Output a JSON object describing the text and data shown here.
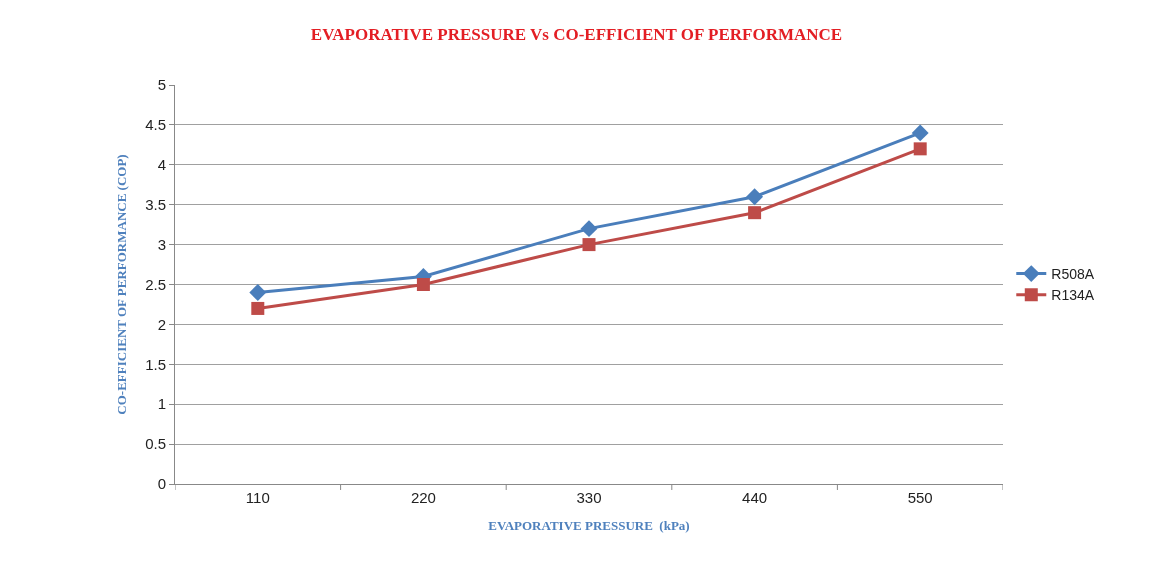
{
  "chart_data": {
    "type": "line",
    "title": "EVAPORATIVE PRESSURE Vs CO-EFFICIENT OF PERFORMANCE",
    "xlabel": "EVAPORATIVE PRESSURE  (kPa)",
    "ylabel": "CO-EFFICIENT OF PERFORMANCE (COP)",
    "categories": [
      "110",
      "220",
      "330",
      "440",
      "550"
    ],
    "series": [
      {
        "name": "R508A",
        "color": "#4a7ebb",
        "marker": "diamond",
        "values": [
          2.4,
          2.6,
          3.2,
          3.6,
          4.4
        ]
      },
      {
        "name": "R134A",
        "color": "#be4b48",
        "marker": "square",
        "values": [
          2.2,
          2.5,
          3.0,
          3.4,
          4.2
        ]
      }
    ],
    "ylim": [
      0,
      5
    ],
    "yticks": [
      0,
      0.5,
      1,
      1.5,
      2,
      2.5,
      3,
      3.5,
      4,
      4.5,
      5
    ],
    "grid": "y",
    "legend": "right",
    "line_style": "solid"
  }
}
